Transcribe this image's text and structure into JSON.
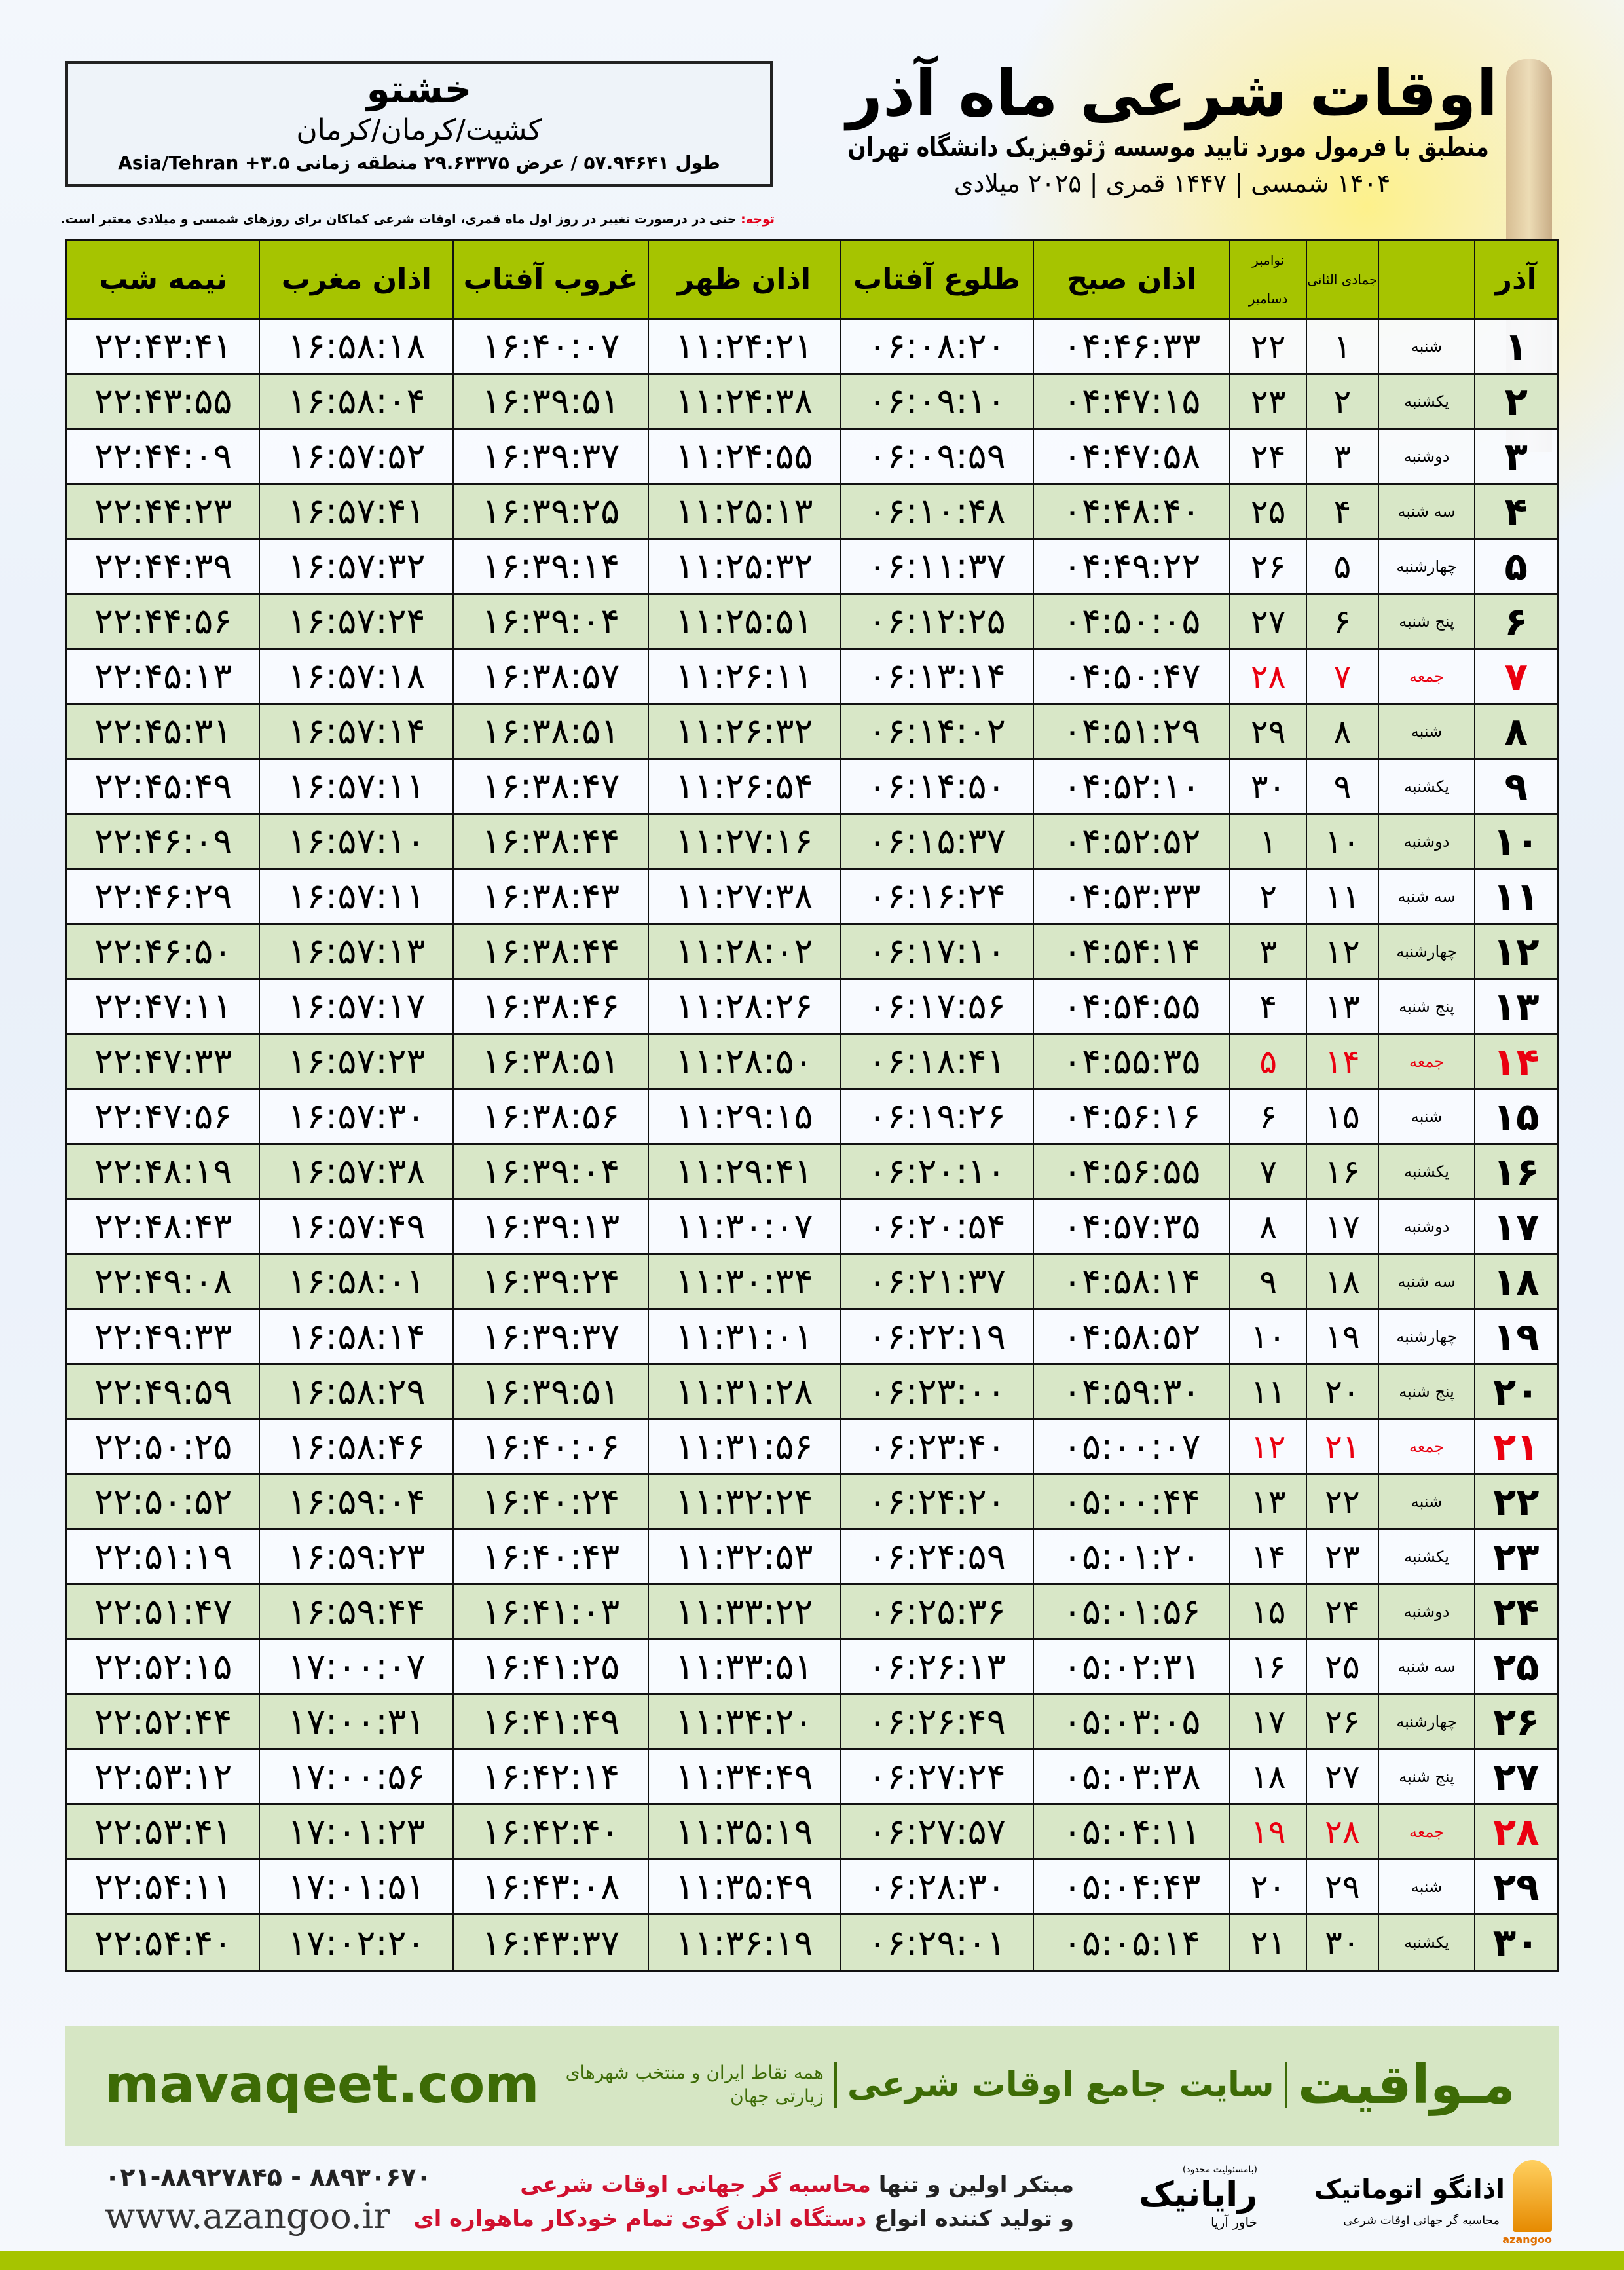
{
  "location": {
    "city": "خشتو",
    "region": "کشیت/کرمان/کرمان",
    "coords": "طول ۵۷.۹۴۶۴۱ / عرض ۲۹.۶۳۳۷۵ منطقه زمانی Asia/Tehran +۳.۵"
  },
  "header": {
    "title": "اوقات شرعی ماه آذر",
    "subtitle": "منطبق با فرمول مورد تایید موسسه ژئوفیزیک دانشگاه تهران",
    "years": "۱۴۰۴ شمسی | ۱۴۴۷ قمری | ۲۰۲۵ میلادی"
  },
  "note": {
    "label": "توجه:",
    "text": " حتی در درصورت تغییر در روز اول ماه قمری، اوقات شرعی کماکان برای روزهای شمسی و میلادی معتبر است."
  },
  "colors": {
    "header_green": "#a6c400",
    "row_green": "#d8e7c7",
    "holiday_red": "#ea0010",
    "brand_green": "#3d6b06"
  },
  "table": {
    "columns": {
      "month": "آذر",
      "hijri": "جمادی الثانی",
      "greg_1": "نوامبر",
      "greg_2": "دسامبر",
      "fajr": "اذان صبح",
      "sunrise": "طلوع آفتاب",
      "dhuhr": "اذان ظهر",
      "sunset": "غروب آفتاب",
      "maghrib": "اذان مغرب",
      "midnight": "نیمه شب"
    },
    "rows": [
      {
        "day": "۱",
        "weekday": "شنبه",
        "hijri": "۱",
        "greg": "۲۲",
        "fajr": "۰۴:۴۶:۳۳",
        "sunrise": "۰۶:۰۸:۲۰",
        "dhuhr": "۱۱:۲۴:۲۱",
        "sunset": "۱۶:۴۰:۰۷",
        "maghrib": "۱۶:۵۸:۱۸",
        "midnight": "۲۲:۴۳:۴۱",
        "holiday": false
      },
      {
        "day": "۲",
        "weekday": "یکشنبه",
        "hijri": "۲",
        "greg": "۲۳",
        "fajr": "۰۴:۴۷:۱۵",
        "sunrise": "۰۶:۰۹:۱۰",
        "dhuhr": "۱۱:۲۴:۳۸",
        "sunset": "۱۶:۳۹:۵۱",
        "maghrib": "۱۶:۵۸:۰۴",
        "midnight": "۲۲:۴۳:۵۵",
        "holiday": false
      },
      {
        "day": "۳",
        "weekday": "دوشنبه",
        "hijri": "۳",
        "greg": "۲۴",
        "fajr": "۰۴:۴۷:۵۸",
        "sunrise": "۰۶:۰۹:۵۹",
        "dhuhr": "۱۱:۲۴:۵۵",
        "sunset": "۱۶:۳۹:۳۷",
        "maghrib": "۱۶:۵۷:۵۲",
        "midnight": "۲۲:۴۴:۰۹",
        "holiday": false
      },
      {
        "day": "۴",
        "weekday": "سه شنبه",
        "hijri": "۴",
        "greg": "۲۵",
        "fajr": "۰۴:۴۸:۴۰",
        "sunrise": "۰۶:۱۰:۴۸",
        "dhuhr": "۱۱:۲۵:۱۳",
        "sunset": "۱۶:۳۹:۲۵",
        "maghrib": "۱۶:۵۷:۴۱",
        "midnight": "۲۲:۴۴:۲۳",
        "holiday": false
      },
      {
        "day": "۵",
        "weekday": "چهارشنبه",
        "hijri": "۵",
        "greg": "۲۶",
        "fajr": "۰۴:۴۹:۲۲",
        "sunrise": "۰۶:۱۱:۳۷",
        "dhuhr": "۱۱:۲۵:۳۲",
        "sunset": "۱۶:۳۹:۱۴",
        "maghrib": "۱۶:۵۷:۳۲",
        "midnight": "۲۲:۴۴:۳۹",
        "holiday": false
      },
      {
        "day": "۶",
        "weekday": "پنج شنبه",
        "hijri": "۶",
        "greg": "۲۷",
        "fajr": "۰۴:۵۰:۰۵",
        "sunrise": "۰۶:۱۲:۲۵",
        "dhuhr": "۱۱:۲۵:۵۱",
        "sunset": "۱۶:۳۹:۰۴",
        "maghrib": "۱۶:۵۷:۲۴",
        "midnight": "۲۲:۴۴:۵۶",
        "holiday": false
      },
      {
        "day": "۷",
        "weekday": "جمعه",
        "hijri": "۷",
        "greg": "۲۸",
        "fajr": "۰۴:۵۰:۴۷",
        "sunrise": "۰۶:۱۳:۱۴",
        "dhuhr": "۱۱:۲۶:۱۱",
        "sunset": "۱۶:۳۸:۵۷",
        "maghrib": "۱۶:۵۷:۱۸",
        "midnight": "۲۲:۴۵:۱۳",
        "holiday": true
      },
      {
        "day": "۸",
        "weekday": "شنبه",
        "hijri": "۸",
        "greg": "۲۹",
        "fajr": "۰۴:۵۱:۲۹",
        "sunrise": "۰۶:۱۴:۰۲",
        "dhuhr": "۱۱:۲۶:۳۲",
        "sunset": "۱۶:۳۸:۵۱",
        "maghrib": "۱۶:۵۷:۱۴",
        "midnight": "۲۲:۴۵:۳۱",
        "holiday": false
      },
      {
        "day": "۹",
        "weekday": "یکشنبه",
        "hijri": "۹",
        "greg": "۳۰",
        "fajr": "۰۴:۵۲:۱۰",
        "sunrise": "۰۶:۱۴:۵۰",
        "dhuhr": "۱۱:۲۶:۵۴",
        "sunset": "۱۶:۳۸:۴۷",
        "maghrib": "۱۶:۵۷:۱۱",
        "midnight": "۲۲:۴۵:۴۹",
        "holiday": false
      },
      {
        "day": "۱۰",
        "weekday": "دوشنبه",
        "hijri": "۱۰",
        "greg": "۱",
        "fajr": "۰۴:۵۲:۵۲",
        "sunrise": "۰۶:۱۵:۳۷",
        "dhuhr": "۱۱:۲۷:۱۶",
        "sunset": "۱۶:۳۸:۴۴",
        "maghrib": "۱۶:۵۷:۱۰",
        "midnight": "۲۲:۴۶:۰۹",
        "holiday": false
      },
      {
        "day": "۱۱",
        "weekday": "سه شنبه",
        "hijri": "۱۱",
        "greg": "۲",
        "fajr": "۰۴:۵۳:۳۳",
        "sunrise": "۰۶:۱۶:۲۴",
        "dhuhr": "۱۱:۲۷:۳۸",
        "sunset": "۱۶:۳۸:۴۳",
        "maghrib": "۱۶:۵۷:۱۱",
        "midnight": "۲۲:۴۶:۲۹",
        "holiday": false
      },
      {
        "day": "۱۲",
        "weekday": "چهارشنبه",
        "hijri": "۱۲",
        "greg": "۳",
        "fajr": "۰۴:۵۴:۱۴",
        "sunrise": "۰۶:۱۷:۱۰",
        "dhuhr": "۱۱:۲۸:۰۲",
        "sunset": "۱۶:۳۸:۴۴",
        "maghrib": "۱۶:۵۷:۱۳",
        "midnight": "۲۲:۴۶:۵۰",
        "holiday": false
      },
      {
        "day": "۱۳",
        "weekday": "پنج شنبه",
        "hijri": "۱۳",
        "greg": "۴",
        "fajr": "۰۴:۵۴:۵۵",
        "sunrise": "۰۶:۱۷:۵۶",
        "dhuhr": "۱۱:۲۸:۲۶",
        "sunset": "۱۶:۳۸:۴۶",
        "maghrib": "۱۶:۵۷:۱۷",
        "midnight": "۲۲:۴۷:۱۱",
        "holiday": false
      },
      {
        "day": "۱۴",
        "weekday": "جمعه",
        "hijri": "۱۴",
        "greg": "۵",
        "fajr": "۰۴:۵۵:۳۵",
        "sunrise": "۰۶:۱۸:۴۱",
        "dhuhr": "۱۱:۲۸:۵۰",
        "sunset": "۱۶:۳۸:۵۱",
        "maghrib": "۱۶:۵۷:۲۳",
        "midnight": "۲۲:۴۷:۳۳",
        "holiday": true
      },
      {
        "day": "۱۵",
        "weekday": "شنبه",
        "hijri": "۱۵",
        "greg": "۶",
        "fajr": "۰۴:۵۶:۱۶",
        "sunrise": "۰۶:۱۹:۲۶",
        "dhuhr": "۱۱:۲۹:۱۵",
        "sunset": "۱۶:۳۸:۵۶",
        "maghrib": "۱۶:۵۷:۳۰",
        "midnight": "۲۲:۴۷:۵۶",
        "holiday": false
      },
      {
        "day": "۱۶",
        "weekday": "یکشنبه",
        "hijri": "۱۶",
        "greg": "۷",
        "fajr": "۰۴:۵۶:۵۵",
        "sunrise": "۰۶:۲۰:۱۰",
        "dhuhr": "۱۱:۲۹:۴۱",
        "sunset": "۱۶:۳۹:۰۴",
        "maghrib": "۱۶:۵۷:۳۸",
        "midnight": "۲۲:۴۸:۱۹",
        "holiday": false
      },
      {
        "day": "۱۷",
        "weekday": "دوشنبه",
        "hijri": "۱۷",
        "greg": "۸",
        "fajr": "۰۴:۵۷:۳۵",
        "sunrise": "۰۶:۲۰:۵۴",
        "dhuhr": "۱۱:۳۰:۰۷",
        "sunset": "۱۶:۳۹:۱۳",
        "maghrib": "۱۶:۵۷:۴۹",
        "midnight": "۲۲:۴۸:۴۳",
        "holiday": false
      },
      {
        "day": "۱۸",
        "weekday": "سه شنبه",
        "hijri": "۱۸",
        "greg": "۹",
        "fajr": "۰۴:۵۸:۱۴",
        "sunrise": "۰۶:۲۱:۳۷",
        "dhuhr": "۱۱:۳۰:۳۴",
        "sunset": "۱۶:۳۹:۲۴",
        "maghrib": "۱۶:۵۸:۰۱",
        "midnight": "۲۲:۴۹:۰۸",
        "holiday": false
      },
      {
        "day": "۱۹",
        "weekday": "چهارشنبه",
        "hijri": "۱۹",
        "greg": "۱۰",
        "fajr": "۰۴:۵۸:۵۲",
        "sunrise": "۰۶:۲۲:۱۹",
        "dhuhr": "۱۱:۳۱:۰۱",
        "sunset": "۱۶:۳۹:۳۷",
        "maghrib": "۱۶:۵۸:۱۴",
        "midnight": "۲۲:۴۹:۳۳",
        "holiday": false
      },
      {
        "day": "۲۰",
        "weekday": "پنج شنبه",
        "hijri": "۲۰",
        "greg": "۱۱",
        "fajr": "۰۴:۵۹:۳۰",
        "sunrise": "۰۶:۲۳:۰۰",
        "dhuhr": "۱۱:۳۱:۲۸",
        "sunset": "۱۶:۳۹:۵۱",
        "maghrib": "۱۶:۵۸:۲۹",
        "midnight": "۲۲:۴۹:۵۹",
        "holiday": false
      },
      {
        "day": "۲۱",
        "weekday": "جمعه",
        "hijri": "۲۱",
        "greg": "۱۲",
        "fajr": "۰۵:۰۰:۰۷",
        "sunrise": "۰۶:۲۳:۴۰",
        "dhuhr": "۱۱:۳۱:۵۶",
        "sunset": "۱۶:۴۰:۰۶",
        "maghrib": "۱۶:۵۸:۴۶",
        "midnight": "۲۲:۵۰:۲۵",
        "holiday": true
      },
      {
        "day": "۲۲",
        "weekday": "شنبه",
        "hijri": "۲۲",
        "greg": "۱۳",
        "fajr": "۰۵:۰۰:۴۴",
        "sunrise": "۰۶:۲۴:۲۰",
        "dhuhr": "۱۱:۳۲:۲۴",
        "sunset": "۱۶:۴۰:۲۴",
        "maghrib": "۱۶:۵۹:۰۴",
        "midnight": "۲۲:۵۰:۵۲",
        "holiday": false
      },
      {
        "day": "۲۳",
        "weekday": "یکشنبه",
        "hijri": "۲۳",
        "greg": "۱۴",
        "fajr": "۰۵:۰۱:۲۰",
        "sunrise": "۰۶:۲۴:۵۹",
        "dhuhr": "۱۱:۳۲:۵۳",
        "sunset": "۱۶:۴۰:۴۳",
        "maghrib": "۱۶:۵۹:۲۳",
        "midnight": "۲۲:۵۱:۱۹",
        "holiday": false
      },
      {
        "day": "۲۴",
        "weekday": "دوشنبه",
        "hijri": "۲۴",
        "greg": "۱۵",
        "fajr": "۰۵:۰۱:۵۶",
        "sunrise": "۰۶:۲۵:۳۶",
        "dhuhr": "۱۱:۳۳:۲۲",
        "sunset": "۱۶:۴۱:۰۳",
        "maghrib": "۱۶:۵۹:۴۴",
        "midnight": "۲۲:۵۱:۴۷",
        "holiday": false
      },
      {
        "day": "۲۵",
        "weekday": "سه شنبه",
        "hijri": "۲۵",
        "greg": "۱۶",
        "fajr": "۰۵:۰۲:۳۱",
        "sunrise": "۰۶:۲۶:۱۳",
        "dhuhr": "۱۱:۳۳:۵۱",
        "sunset": "۱۶:۴۱:۲۵",
        "maghrib": "۱۷:۰۰:۰۷",
        "midnight": "۲۲:۵۲:۱۵",
        "holiday": false
      },
      {
        "day": "۲۶",
        "weekday": "چهارشنبه",
        "hijri": "۲۶",
        "greg": "۱۷",
        "fajr": "۰۵:۰۳:۰۵",
        "sunrise": "۰۶:۲۶:۴۹",
        "dhuhr": "۱۱:۳۴:۲۰",
        "sunset": "۱۶:۴۱:۴۹",
        "maghrib": "۱۷:۰۰:۳۱",
        "midnight": "۲۲:۵۲:۴۴",
        "holiday": false
      },
      {
        "day": "۲۷",
        "weekday": "پنج شنبه",
        "hijri": "۲۷",
        "greg": "۱۸",
        "fajr": "۰۵:۰۳:۳۸",
        "sunrise": "۰۶:۲۷:۲۴",
        "dhuhr": "۱۱:۳۴:۴۹",
        "sunset": "۱۶:۴۲:۱۴",
        "maghrib": "۱۷:۰۰:۵۶",
        "midnight": "۲۲:۵۳:۱۲",
        "holiday": false
      },
      {
        "day": "۲۸",
        "weekday": "جمعه",
        "hijri": "۲۸",
        "greg": "۱۹",
        "fajr": "۰۵:۰۴:۱۱",
        "sunrise": "۰۶:۲۷:۵۷",
        "dhuhr": "۱۱:۳۵:۱۹",
        "sunset": "۱۶:۴۲:۴۰",
        "maghrib": "۱۷:۰۱:۲۳",
        "midnight": "۲۲:۵۳:۴۱",
        "holiday": true
      },
      {
        "day": "۲۹",
        "weekday": "شنبه",
        "hijri": "۲۹",
        "greg": "۲۰",
        "fajr": "۰۵:۰۴:۴۳",
        "sunrise": "۰۶:۲۸:۳۰",
        "dhuhr": "۱۱:۳۵:۴۹",
        "sunset": "۱۶:۴۳:۰۸",
        "maghrib": "۱۷:۰۱:۵۱",
        "midnight": "۲۲:۵۴:۱۱",
        "holiday": false
      },
      {
        "day": "۳۰",
        "weekday": "یکشنبه",
        "hijri": "۳۰",
        "greg": "۲۱",
        "fajr": "۰۵:۰۵:۱۴",
        "sunrise": "۰۶:۲۹:۰۱",
        "dhuhr": "۱۱:۳۶:۱۹",
        "sunset": "۱۶:۴۳:۳۷",
        "maghrib": "۱۷:۰۲:۲۰",
        "midnight": "۲۲:۵۴:۴۰",
        "holiday": false
      }
    ]
  },
  "footer": {
    "brand": "مـواقیت",
    "tagline": "سایت جامع اوقات شرعی",
    "subtagline": "همه نقاط ایران و منتخب شهرهای زیارتی جهان",
    "url": "mavaqeet.com"
  },
  "bottom": {
    "phone": "۰۲۱-۸۸۹۲۷۸۴۵ - ۸۸۹۳۰۶۷۰",
    "website": "www.azangoo.ir",
    "line1_prefix": "مبتکر اولین و تنها ",
    "line1_highlight": "محاسبه گر جهانی اوقات شرعی",
    "line2_prefix": "و تولید کننده انواع ",
    "line2_highlight": "دستگاه اذان گوی تمام خودکار ماهواره ای",
    "logo_rayanik": {
      "note": "(بامسئولیت محدود)",
      "name": "رایانیک",
      "sub": "خاور آریا"
    },
    "logo_azangoo": {
      "name": "اذانگو اتوماتیک",
      "sub": "محاسبه گر جهانی اوقات شرعی",
      "en": "azangoo"
    }
  }
}
